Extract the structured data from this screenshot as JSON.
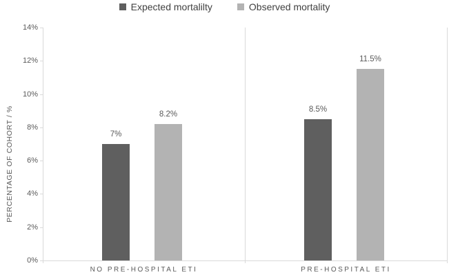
{
  "chart_data": {
    "type": "bar",
    "title": "",
    "categories": [
      "NO PRE-HOSPITAL ETI",
      "PRE-HOSPITAL ETI"
    ],
    "series": [
      {
        "name": "Expected mortalilty",
        "color": "#5f5f5f",
        "values": [
          7,
          8.5
        ],
        "data_labels": [
          "7%",
          "8.5%"
        ]
      },
      {
        "name": "Observed mortality",
        "color": "#b3b3b3",
        "values": [
          8.2,
          11.5
        ],
        "data_labels": [
          "8.2%",
          "11.5%"
        ]
      }
    ],
    "xlabel": "",
    "ylabel": "PERCENTAGE OF COHORT / %",
    "ylim": [
      0,
      14
    ],
    "ytick_step": 2,
    "ytick_labels": [
      "0%",
      "2%",
      "4%",
      "6%",
      "8%",
      "10%",
      "12%",
      "14%"
    ],
    "legend_position": "top",
    "grid": false,
    "colors": {
      "axis_line": "#d9d9d9",
      "tick_text": "#595959",
      "data_label_text": "#595959",
      "legend_text": "#404040",
      "background": "#ffffff"
    }
  }
}
